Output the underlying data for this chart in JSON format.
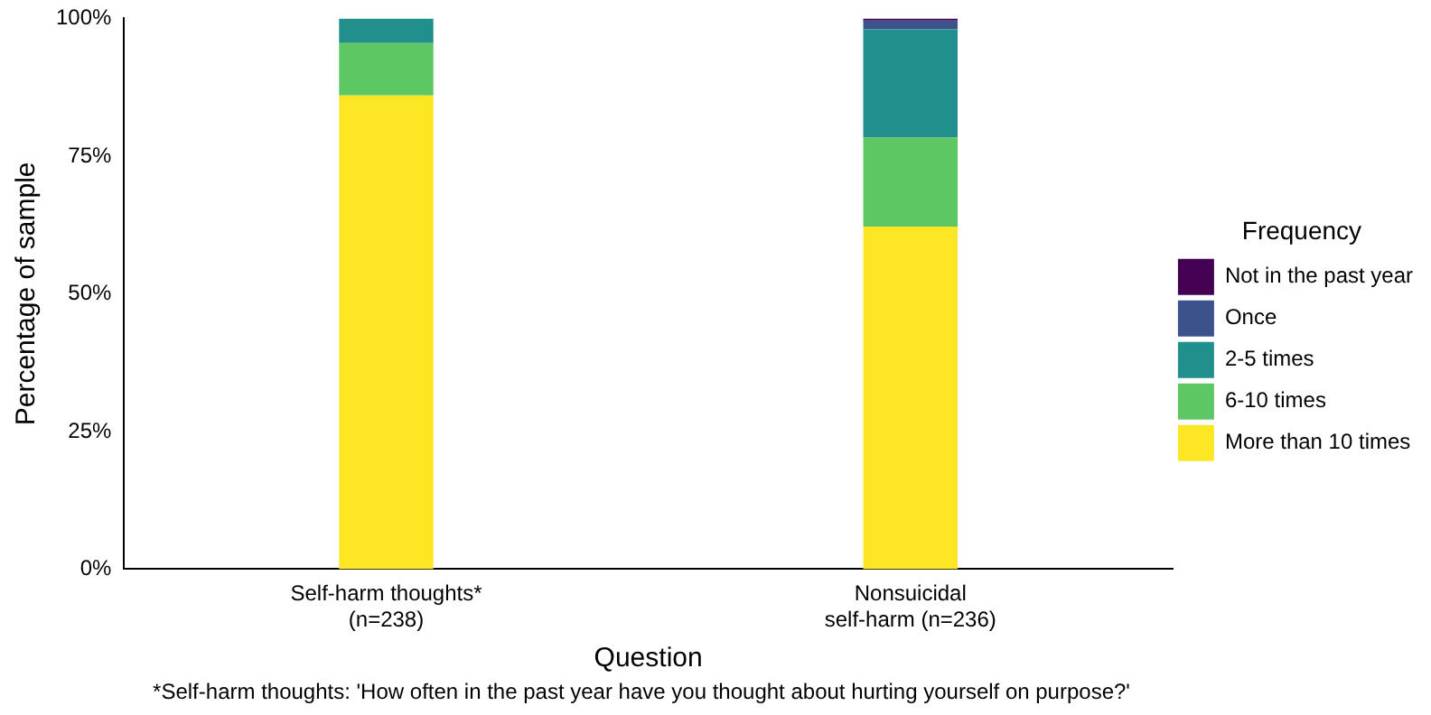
{
  "chart_data": {
    "type": "bar",
    "stacked": true,
    "xlabel": "Question",
    "ylabel": "Percentage of sample",
    "legend_title": "Frequency",
    "legend": "right",
    "grid": false,
    "categories": [
      "Self-harm thoughts*\n(n=238)",
      "Nonsuicidal\nself-harm (n=236)"
    ],
    "series": [
      {
        "name": "More than 10 times",
        "color": "#fde725",
        "values": [
          86,
          62.2
        ]
      },
      {
        "name": "6-10 times",
        "color": "#5dc863",
        "values": [
          9.5,
          16.2
        ]
      },
      {
        "name": "2-5 times",
        "color": "#21908c",
        "values": [
          4.5,
          19.6
        ]
      },
      {
        "name": "Once",
        "color": "#3b528b",
        "values": [
          0,
          1.6
        ]
      },
      {
        "name": "Not in the past year",
        "color": "#440154",
        "values": [
          0,
          0.4
        ]
      }
    ],
    "ylim": [
      0,
      100
    ],
    "yticks": [
      {
        "value": 0,
        "label": "0%"
      },
      {
        "value": 25,
        "label": "25%"
      },
      {
        "value": 50,
        "label": "50%"
      },
      {
        "value": 75,
        "label": "75%"
      },
      {
        "value": 100,
        "label": "100%"
      }
    ],
    "annotations": [
      "*Self-harm thoughts: 'How often in the past year have you thought about hurting yourself on purpose?'"
    ]
  }
}
